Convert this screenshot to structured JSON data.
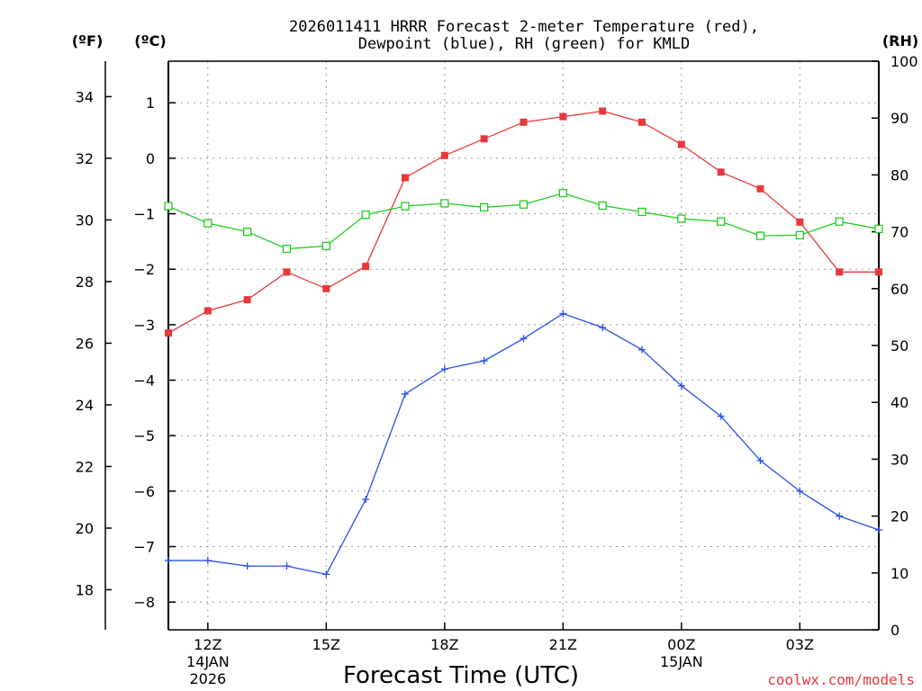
{
  "chart_data": {
    "type": "line",
    "title_line1": "2026011411 HRRR Forecast 2-meter Temperature (red),",
    "title_line2": "Dewpoint (blue), RH (green) for KMLD",
    "xlabel": "Forecast Time (UTC)",
    "credit": "coolwx.com/models",
    "units": {
      "fahrenheit": "(ºF)",
      "celsius": "(ºC)",
      "rh": "(RH)"
    },
    "x_hours": [
      11,
      12,
      13,
      14,
      15,
      16,
      17,
      18,
      19,
      20,
      21,
      22,
      23,
      24,
      25,
      26,
      27,
      28,
      29
    ],
    "x_ticks": [
      {
        "hour": 12,
        "label": "12Z",
        "date1": "14JAN",
        "date2": "2026"
      },
      {
        "hour": 15,
        "label": "15Z"
      },
      {
        "hour": 18,
        "label": "18Z"
      },
      {
        "hour": 21,
        "label": "21Z"
      },
      {
        "hour": 24,
        "label": "00Z",
        "date1": "15JAN"
      },
      {
        "hour": 27,
        "label": "03Z"
      }
    ],
    "celsius_axis": {
      "min": -8.5,
      "max": 1.75,
      "ticks": [
        1,
        0,
        -1,
        -2,
        -3,
        -4,
        -5,
        -6,
        -7,
        -8
      ],
      "tick_labels": [
        "1",
        "0",
        "−1",
        "−2",
        "−3",
        "−4",
        "−5",
        "−6",
        "−7",
        "−8"
      ]
    },
    "fahrenheit_axis": {
      "ticks": [
        34,
        32,
        30,
        28,
        26,
        24,
        22,
        20,
        18
      ],
      "tick_labels": [
        "34",
        "32",
        "30",
        "28",
        "26",
        "24",
        "22",
        "20",
        "18"
      ]
    },
    "rh_axis": {
      "min": 0,
      "max": 100,
      "ticks": [
        100,
        90,
        80,
        70,
        60,
        50,
        40,
        30,
        20,
        10,
        0
      ],
      "tick_labels": [
        "100",
        "90",
        "80",
        "70",
        "60",
        "50",
        "40",
        "30",
        "20",
        "10",
        "0"
      ]
    },
    "series": [
      {
        "name": "Temperature",
        "unit": "C",
        "axis": "left",
        "color": "#e8383c",
        "marker": "filled-square",
        "values": [
          -3.15,
          -2.75,
          -2.55,
          -2.05,
          -2.35,
          -1.95,
          -0.35,
          0.05,
          0.35,
          0.65,
          0.75,
          0.85,
          0.65,
          0.25,
          -0.25,
          -0.55,
          -1.15,
          -2.05,
          -2.05
        ]
      },
      {
        "name": "Dewpoint",
        "unit": "C",
        "axis": "left",
        "color": "#2850e8",
        "marker": "plus",
        "values": [
          -7.25,
          -7.25,
          -7.35,
          -7.35,
          -7.5,
          -6.15,
          -4.25,
          -3.8,
          -3.65,
          -3.25,
          -2.8,
          -3.05,
          -3.45,
          -4.1,
          -4.65,
          -5.45,
          -6.0,
          -6.45,
          -6.7
        ]
      },
      {
        "name": "RH",
        "unit": "%",
        "axis": "right",
        "color": "#22cc22",
        "marker": "open-square",
        "values": [
          74.5,
          71.5,
          70,
          67,
          67.5,
          73,
          74.5,
          75,
          74.3,
          74.8,
          76.8,
          74.6,
          73.5,
          72.3,
          71.8,
          69.3,
          69.4,
          71.8,
          70.5
        ]
      }
    ]
  }
}
